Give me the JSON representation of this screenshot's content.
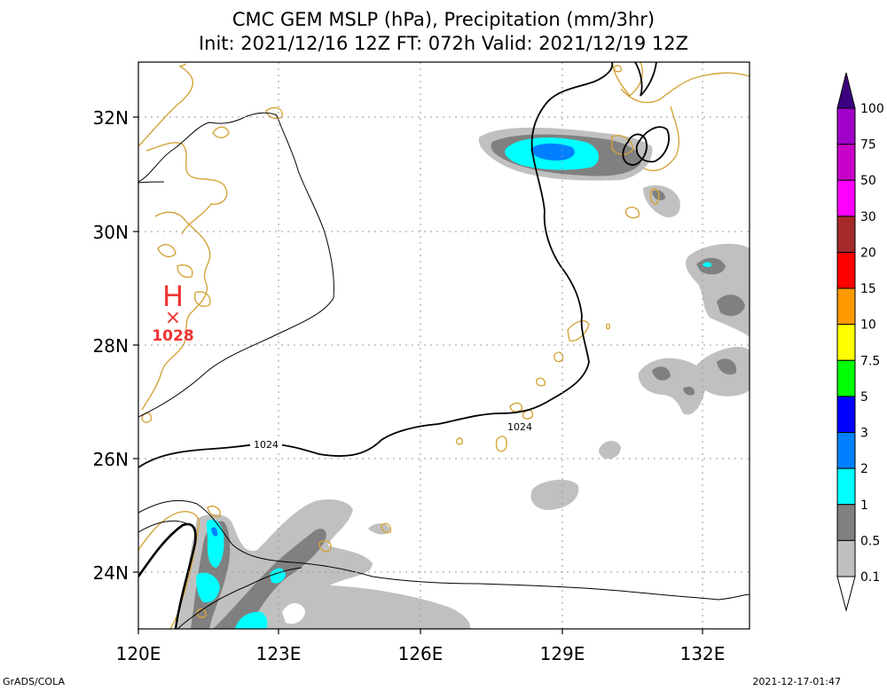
{
  "title": {
    "line1": "CMC GEM MSLP (hPa), Precipitation (mm/3hr)",
    "line2": "Init: 2021/12/16 12Z  FT: 072h  Valid: 2021/12/19 12Z"
  },
  "axes": {
    "lat_labels": [
      "32N",
      "30N",
      "28N",
      "26N",
      "24N"
    ],
    "lon_labels": [
      "120E",
      "123E",
      "126E",
      "129E",
      "132E"
    ]
  },
  "pressure": {
    "high_symbol": "H",
    "high_marker": "×",
    "high_value": "1028",
    "contour_labels": [
      "1024",
      "1024"
    ]
  },
  "colorbar": {
    "labels": [
      "100",
      "75",
      "50",
      "30",
      "20",
      "15",
      "10",
      "7.5",
      "5",
      "3",
      "2",
      "1",
      "0.5",
      "0.1"
    ],
    "colors": [
      "#a000c8",
      "#c800c8",
      "#ff00ff",
      "#a52a2a",
      "#ff0000",
      "#ff9900",
      "#ffff00",
      "#00ff00",
      "#0000ff",
      "#0080ff",
      "#00ffff",
      "#808080",
      "#c0c0c0"
    ],
    "top_triangle_color": "#3c0080"
  },
  "footer": {
    "credit": "GrADS/COLA",
    "timestamp": "2021-12-17-01:47"
  }
}
